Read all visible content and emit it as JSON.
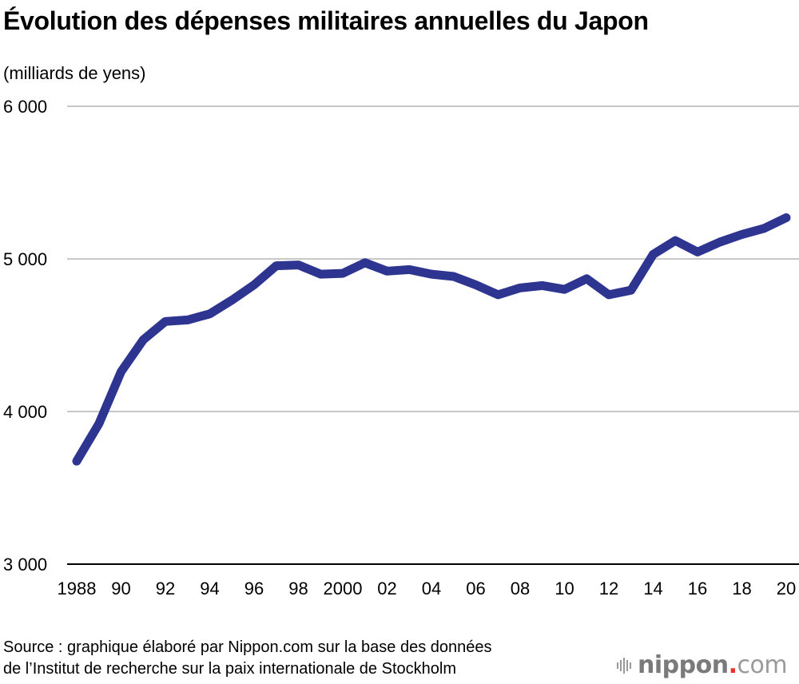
{
  "header": {
    "title": "Évolution des dépenses militaires annuelles du Japon",
    "unit": "(milliards de yens)"
  },
  "footer": {
    "source_line1": "Source : graphique élaboré par Nippon.com sur la base des données",
    "source_line2": "de l’Institut de recherche sur la paix internationale de Stockholm",
    "logo": {
      "name": "nippon",
      "dot": ".",
      "tld": "com",
      "icon": "sound-bars-icon"
    }
  },
  "colors": {
    "line": "#2e3590",
    "grid": "#c8c8c8",
    "axis": "#000000",
    "logo_dot": "#e8322d"
  },
  "chart_data": {
    "type": "line",
    "title": "Évolution des dépenses militaires annuelles du Japon",
    "xlabel": "",
    "ylabel": "(milliards de yens)",
    "x": [
      1988,
      1989,
      1990,
      1991,
      1992,
      1993,
      1994,
      1995,
      1996,
      1997,
      1998,
      1999,
      2000,
      2001,
      2002,
      2003,
      2004,
      2005,
      2006,
      2007,
      2008,
      2009,
      2010,
      2011,
      2012,
      2013,
      2014,
      2015,
      2016,
      2017,
      2018,
      2019,
      2020
    ],
    "series": [
      {
        "name": "Dépenses militaires",
        "values": [
          3675,
          3920,
          4260,
          4470,
          4590,
          4600,
          4640,
          4730,
          4830,
          4955,
          4960,
          4900,
          4905,
          4975,
          4920,
          4930,
          4900,
          4885,
          4830,
          4765,
          4810,
          4825,
          4800,
          4870,
          4765,
          4795,
          5030,
          5120,
          5045,
          5110,
          5160,
          5200,
          5270
        ]
      }
    ],
    "xlim": [
      1988,
      2020
    ],
    "ylim": [
      3000,
      6000
    ],
    "yticks": [
      3000,
      4000,
      5000,
      6000
    ],
    "ytick_labels": [
      "3 000",
      "4 000",
      "5 000",
      "6 000"
    ],
    "xticks": [
      1988,
      1990,
      1992,
      1994,
      1996,
      1998,
      2000,
      2002,
      2004,
      2006,
      2008,
      2010,
      2012,
      2014,
      2016,
      2018,
      2020
    ],
    "xtick_labels": [
      "1988",
      "90",
      "92",
      "94",
      "96",
      "98",
      "2000",
      "02",
      "04",
      "06",
      "08",
      "10",
      "12",
      "14",
      "16",
      "18",
      "20"
    ],
    "grid": true,
    "legend": "none"
  }
}
